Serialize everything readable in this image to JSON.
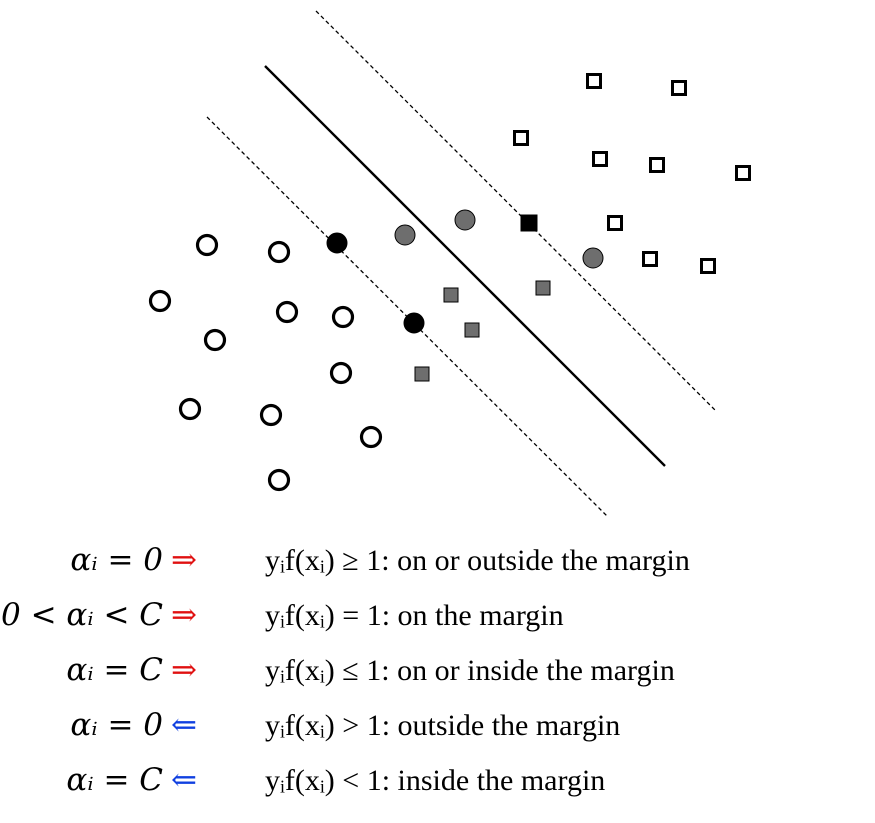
{
  "colors": {
    "stroke": "#000000",
    "gray_fill": "#6e6e6e",
    "black_fill": "#000000",
    "red_arrow": "#e01010",
    "blue_arrow": "#1040e0"
  },
  "diagram": {
    "lines": [
      {
        "kind": "dashed-margin",
        "name": "margin-line-left"
      },
      {
        "kind": "solid-boundary",
        "name": "decision-boundary"
      },
      {
        "kind": "dashed-margin",
        "name": "margin-line-right"
      }
    ],
    "markers": [
      {
        "shape": "circle",
        "fill": "white"
      },
      {
        "shape": "circle",
        "fill": "white"
      },
      {
        "shape": "circle",
        "fill": "white"
      },
      {
        "shape": "circle",
        "fill": "white"
      },
      {
        "shape": "circle",
        "fill": "white"
      },
      {
        "shape": "circle",
        "fill": "white"
      },
      {
        "shape": "circle",
        "fill": "white"
      },
      {
        "shape": "circle",
        "fill": "white"
      },
      {
        "shape": "circle",
        "fill": "white"
      },
      {
        "shape": "circle",
        "fill": "white"
      },
      {
        "shape": "circle",
        "fill": "white"
      },
      {
        "shape": "circle",
        "fill": "white"
      },
      {
        "shape": "circle",
        "fill": "black"
      },
      {
        "shape": "circle",
        "fill": "black"
      },
      {
        "shape": "circle",
        "fill": "gray"
      },
      {
        "shape": "circle",
        "fill": "gray"
      },
      {
        "shape": "circle",
        "fill": "gray"
      },
      {
        "shape": "square",
        "fill": "white"
      },
      {
        "shape": "square",
        "fill": "white"
      },
      {
        "shape": "square",
        "fill": "white"
      },
      {
        "shape": "square",
        "fill": "white"
      },
      {
        "shape": "square",
        "fill": "white"
      },
      {
        "shape": "square",
        "fill": "white"
      },
      {
        "shape": "square",
        "fill": "white"
      },
      {
        "shape": "square",
        "fill": "white"
      },
      {
        "shape": "square",
        "fill": "white"
      },
      {
        "shape": "square",
        "fill": "black"
      },
      {
        "shape": "square",
        "fill": "gray"
      },
      {
        "shape": "square",
        "fill": "gray"
      },
      {
        "shape": "square",
        "fill": "gray"
      },
      {
        "shape": "square",
        "fill": "gray"
      }
    ]
  },
  "conditions": [
    {
      "lhs": "αᵢ = 0",
      "arrow": "⇒",
      "arrow_color": "#e01010",
      "rhs": "yᵢf(xᵢ) ≥ 1: on or outside the margin"
    },
    {
      "lhs": "0 < αᵢ < C",
      "arrow": "⇒",
      "arrow_color": "#e01010",
      "rhs": "yᵢf(xᵢ) = 1: on the margin"
    },
    {
      "lhs": "αᵢ = C",
      "arrow": "⇒",
      "arrow_color": "#e01010",
      "rhs": "yᵢf(xᵢ) ≤ 1: on or inside the margin"
    },
    {
      "lhs": "αᵢ = 0",
      "arrow": "⇐",
      "arrow_color": "#1040e0",
      "rhs": "yᵢf(xᵢ) > 1: outside the margin"
    },
    {
      "lhs": "αᵢ = C",
      "arrow": "⇐",
      "arrow_color": "#1040e0",
      "rhs": "yᵢf(xᵢ) < 1: inside the margin"
    }
  ]
}
